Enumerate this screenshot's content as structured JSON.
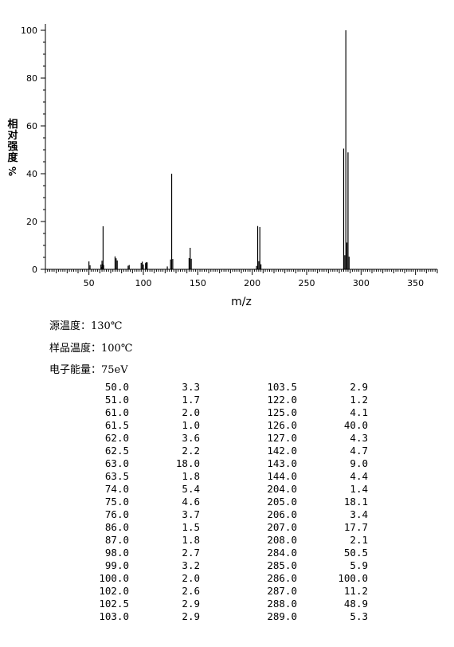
{
  "chart_data": {
    "type": "bar",
    "title": "",
    "xlabel": "m/z",
    "ylabel_chars": [
      "相",
      "对",
      "强",
      "度"
    ],
    "ylabel_unit": "%",
    "xlim": [
      10,
      370
    ],
    "ylim": [
      0,
      100
    ],
    "x_ticks": [
      50,
      100,
      150,
      200,
      250,
      300,
      350
    ],
    "y_ticks": [
      0,
      20,
      40,
      60,
      80,
      100
    ],
    "grid": false,
    "colors": {
      "peak": "#000000",
      "axis": "#000000"
    },
    "peaks": [
      {
        "mz": 50.0,
        "intensity": 3.3
      },
      {
        "mz": 51.0,
        "intensity": 1.7
      },
      {
        "mz": 61.0,
        "intensity": 2.0
      },
      {
        "mz": 61.5,
        "intensity": 1.0
      },
      {
        "mz": 62.0,
        "intensity": 3.6
      },
      {
        "mz": 62.5,
        "intensity": 2.2
      },
      {
        "mz": 63.0,
        "intensity": 18.0
      },
      {
        "mz": 63.5,
        "intensity": 1.8
      },
      {
        "mz": 74.0,
        "intensity": 5.4
      },
      {
        "mz": 75.0,
        "intensity": 4.6
      },
      {
        "mz": 76.0,
        "intensity": 3.7
      },
      {
        "mz": 86.0,
        "intensity": 1.5
      },
      {
        "mz": 87.0,
        "intensity": 1.8
      },
      {
        "mz": 98.0,
        "intensity": 2.7
      },
      {
        "mz": 99.0,
        "intensity": 3.2
      },
      {
        "mz": 100.0,
        "intensity": 2.0
      },
      {
        "mz": 102.0,
        "intensity": 2.6
      },
      {
        "mz": 102.5,
        "intensity": 2.9
      },
      {
        "mz": 103.0,
        "intensity": 2.9
      },
      {
        "mz": 103.5,
        "intensity": 2.9
      },
      {
        "mz": 122.0,
        "intensity": 1.2
      },
      {
        "mz": 125.0,
        "intensity": 4.1
      },
      {
        "mz": 126.0,
        "intensity": 40.0
      },
      {
        "mz": 127.0,
        "intensity": 4.3
      },
      {
        "mz": 142.0,
        "intensity": 4.7
      },
      {
        "mz": 143.0,
        "intensity": 9.0
      },
      {
        "mz": 144.0,
        "intensity": 4.4
      },
      {
        "mz": 204.0,
        "intensity": 1.4
      },
      {
        "mz": 205.0,
        "intensity": 18.1
      },
      {
        "mz": 206.0,
        "intensity": 3.4
      },
      {
        "mz": 207.0,
        "intensity": 17.7
      },
      {
        "mz": 208.0,
        "intensity": 2.1
      },
      {
        "mz": 284.0,
        "intensity": 50.5
      },
      {
        "mz": 285.0,
        "intensity": 5.9
      },
      {
        "mz": 286.0,
        "intensity": 100.0
      },
      {
        "mz": 287.0,
        "intensity": 11.2
      },
      {
        "mz": 288.0,
        "intensity": 48.9
      },
      {
        "mz": 289.0,
        "intensity": 5.3
      }
    ]
  },
  "meta": {
    "source_temp": "源温度：130℃",
    "sample_temp": "样品温度：100℃",
    "electron_energy": "电子能量：75eV"
  },
  "table": {
    "rows": [
      [
        "50.0",
        "3.3",
        "103.5",
        "2.9"
      ],
      [
        "51.0",
        "1.7",
        "122.0",
        "1.2"
      ],
      [
        "61.0",
        "2.0",
        "125.0",
        "4.1"
      ],
      [
        "61.5",
        "1.0",
        "126.0",
        "40.0"
      ],
      [
        "62.0",
        "3.6",
        "127.0",
        "4.3"
      ],
      [
        "62.5",
        "2.2",
        "142.0",
        "4.7"
      ],
      [
        "63.0",
        "18.0",
        "143.0",
        "9.0"
      ],
      [
        "63.5",
        "1.8",
        "144.0",
        "4.4"
      ],
      [
        "74.0",
        "5.4",
        "204.0",
        "1.4"
      ],
      [
        "75.0",
        "4.6",
        "205.0",
        "18.1"
      ],
      [
        "76.0",
        "3.7",
        "206.0",
        "3.4"
      ],
      [
        "86.0",
        "1.5",
        "207.0",
        "17.7"
      ],
      [
        "87.0",
        "1.8",
        "208.0",
        "2.1"
      ],
      [
        "98.0",
        "2.7",
        "284.0",
        "50.5"
      ],
      [
        "99.0",
        "3.2",
        "285.0",
        "5.9"
      ],
      [
        "100.0",
        "2.0",
        "286.0",
        "100.0"
      ],
      [
        "102.0",
        "2.6",
        "287.0",
        "11.2"
      ],
      [
        "102.5",
        "2.9",
        "288.0",
        "48.9"
      ],
      [
        "103.0",
        "2.9",
        "289.0",
        "5.3"
      ]
    ]
  }
}
